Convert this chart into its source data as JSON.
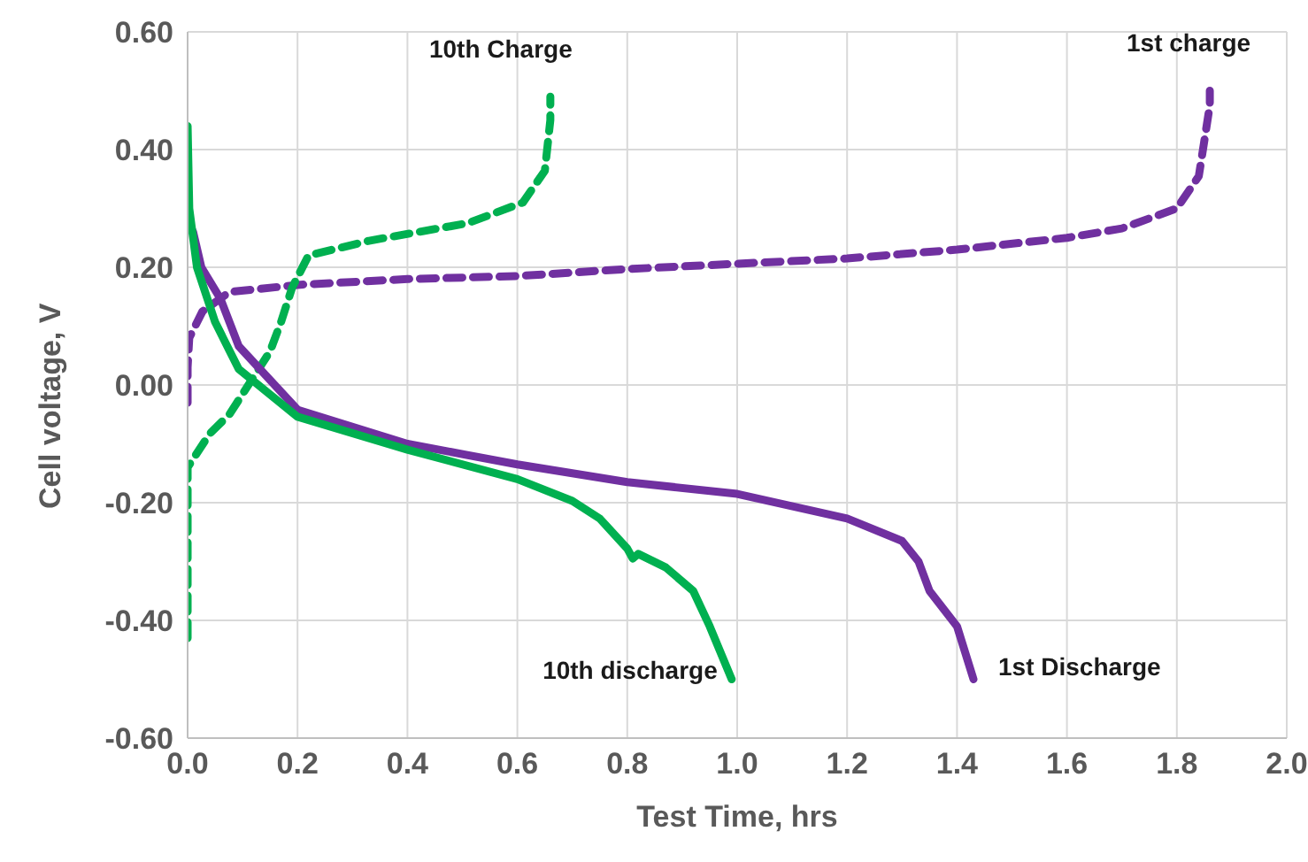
{
  "chart_data": {
    "type": "line",
    "xlabel": "Test Time, hrs",
    "ylabel": "Cell voltage, V",
    "xlim": [
      0,
      2
    ],
    "xticks": [
      {
        "value": 0,
        "label": "0.0"
      },
      {
        "value": 0.2,
        "label": "0.2"
      },
      {
        "value": 0.4,
        "label": "0.4"
      },
      {
        "value": 0.6,
        "label": "0.6"
      },
      {
        "value": 0.8,
        "label": "0.8"
      },
      {
        "value": 1,
        "label": "1.0"
      },
      {
        "value": 1.2,
        "label": "1.2"
      },
      {
        "value": 1.4,
        "label": "1.4"
      },
      {
        "value": 1.6,
        "label": "1.6"
      },
      {
        "value": 1.8,
        "label": "1.8"
      },
      {
        "value": 2,
        "label": "2.0"
      }
    ],
    "ylim": [
      -0.6,
      0.6
    ],
    "yticks": [
      {
        "value": -0.6,
        "label": "-0.60"
      },
      {
        "value": -0.4,
        "label": "-0.40"
      },
      {
        "value": -0.2,
        "label": "-0.20"
      },
      {
        "value": 0,
        "label": "0.00"
      },
      {
        "value": 0.2,
        "label": "0.20"
      },
      {
        "value": 0.4,
        "label": "0.40"
      },
      {
        "value": 0.6,
        "label": "0.60"
      }
    ],
    "grid": true,
    "marker": "none",
    "series": [
      {
        "name": "1st charge",
        "color": "#7030a0",
        "line_style": "dashed",
        "x": [
          0,
          0,
          0.003,
          0.027,
          0.076,
          0.2,
          0.4,
          0.6,
          0.8,
          1.0,
          1.2,
          1.4,
          1.6,
          1.7,
          1.8,
          1.84,
          1.86,
          1.86
        ],
        "values": [
          -0.03,
          0.03,
          0.08,
          0.125,
          0.158,
          0.17,
          0.18,
          0.185,
          0.197,
          0.206,
          0.215,
          0.23,
          0.25,
          0.266,
          0.3,
          0.355,
          0.475,
          0.5
        ]
      },
      {
        "name": "10th Charge",
        "color": "#00b050",
        "line_style": "dashed",
        "x": [
          0,
          0,
          0.04,
          0.076,
          0.15,
          0.17,
          0.19,
          0.22,
          0.33,
          0.51,
          0.61,
          0.65,
          0.66,
          0.66
        ],
        "values": [
          -0.43,
          -0.14,
          -0.083,
          -0.05,
          0.057,
          0.107,
          0.165,
          0.22,
          0.245,
          0.275,
          0.31,
          0.364,
          0.45,
          0.49
        ]
      },
      {
        "name": "1st Discharge",
        "color": "#7030a0",
        "line_style": "solid",
        "x": [
          0,
          0.01,
          0.025,
          0.06,
          0.093,
          0.2,
          0.4,
          0.6,
          0.8,
          1.0,
          1.2,
          1.3,
          1.33,
          1.35,
          1.4,
          1.43
        ],
        "values": [
          0.28,
          0.26,
          0.2,
          0.146,
          0.066,
          -0.042,
          -0.1,
          -0.135,
          -0.165,
          -0.185,
          -0.227,
          -0.265,
          -0.3,
          -0.35,
          -0.41,
          -0.5
        ]
      },
      {
        "name": "10th discharge",
        "color": "#00b050",
        "line_style": "solid",
        "x": [
          0,
          0.003,
          0.017,
          0.05,
          0.093,
          0.2,
          0.4,
          0.6,
          0.7,
          0.75,
          0.8,
          0.81,
          0.82,
          0.87,
          0.92,
          0.95,
          0.99
        ],
        "values": [
          0.44,
          0.3,
          0.2,
          0.107,
          0.027,
          -0.054,
          -0.11,
          -0.16,
          -0.197,
          -0.227,
          -0.278,
          -0.295,
          -0.287,
          -0.31,
          -0.35,
          -0.41,
          -0.5
        ]
      }
    ]
  }
}
